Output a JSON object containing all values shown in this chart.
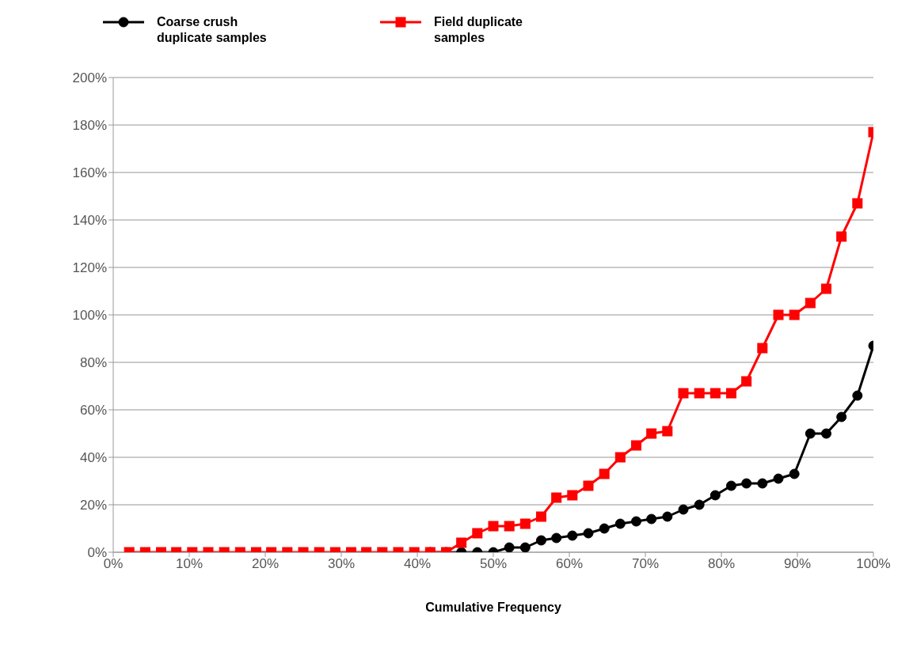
{
  "chart_data": {
    "type": "line",
    "xlabel": "Cumulative Frequency",
    "x": [
      2.1,
      4.2,
      6.3,
      8.3,
      10.4,
      12.5,
      14.6,
      16.7,
      18.8,
      20.8,
      22.9,
      25,
      27.1,
      29.2,
      31.3,
      33.3,
      35.4,
      37.5,
      39.6,
      41.7,
      43.8,
      45.8,
      47.9,
      50,
      52.1,
      54.2,
      56.3,
      58.3,
      60.4,
      62.5,
      64.6,
      66.7,
      68.8,
      70.8,
      72.9,
      75,
      77.1,
      79.2,
      81.3,
      83.3,
      85.4,
      87.5,
      89.6,
      91.7,
      93.8,
      95.8,
      97.9,
      100
    ],
    "series": [
      {
        "name": "Coarse crush duplicate samples",
        "color": "#000000",
        "marker": "circle",
        "values": [
          null,
          null,
          null,
          null,
          null,
          null,
          null,
          null,
          null,
          null,
          null,
          null,
          null,
          null,
          null,
          null,
          null,
          null,
          null,
          0,
          0,
          0,
          0,
          0,
          2,
          2,
          5,
          6,
          7,
          8,
          10,
          12,
          13,
          14,
          15,
          18,
          20,
          24,
          28,
          29,
          29,
          31,
          33,
          50,
          50,
          57,
          66,
          87
        ]
      },
      {
        "name": "Field duplicate samples",
        "color": "#ff0000",
        "marker": "square",
        "values": [
          0,
          0,
          0,
          0,
          0,
          0,
          0,
          0,
          0,
          0,
          0,
          0,
          0,
          0,
          0,
          0,
          0,
          0,
          0,
          0,
          0,
          4,
          8,
          11,
          11,
          12,
          15,
          23,
          24,
          28,
          33,
          40,
          45,
          50,
          51,
          67,
          67,
          67,
          67,
          72,
          86,
          100,
          100,
          105,
          111,
          133,
          147,
          177
        ]
      }
    ],
    "xlim": [
      0,
      100
    ],
    "xticks": [
      {
        "value": 0,
        "label": "0%"
      },
      {
        "value": 10,
        "label": "10%"
      },
      {
        "value": 20,
        "label": "20%"
      },
      {
        "value": 30,
        "label": "30%"
      },
      {
        "value": 40,
        "label": "40%"
      },
      {
        "value": 50,
        "label": "50%"
      },
      {
        "value": 60,
        "label": "60%"
      },
      {
        "value": 70,
        "label": "70%"
      },
      {
        "value": 80,
        "label": "80%"
      },
      {
        "value": 90,
        "label": "90%"
      },
      {
        "value": 100,
        "label": "100%"
      }
    ],
    "ylim": [
      0,
      200
    ],
    "yticks": [
      {
        "value": 0,
        "label": "0%"
      },
      {
        "value": 20,
        "label": "20%"
      },
      {
        "value": 40,
        "label": "40%"
      },
      {
        "value": 60,
        "label": "60%"
      },
      {
        "value": 80,
        "label": "80%"
      },
      {
        "value": 100,
        "label": "100%"
      },
      {
        "value": 120,
        "label": "120%"
      },
      {
        "value": 140,
        "label": "140%"
      },
      {
        "value": 160,
        "label": "160%"
      },
      {
        "value": 180,
        "label": "180%"
      },
      {
        "value": 200,
        "label": "200%"
      }
    ],
    "grid": "y",
    "legend": "top",
    "line_style": "solid"
  }
}
